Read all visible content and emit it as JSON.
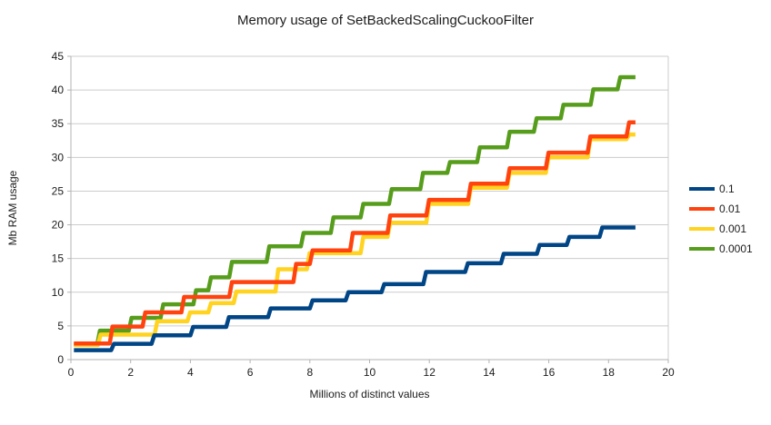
{
  "chart_data": {
    "type": "line",
    "line_style": "step-after",
    "title": "Memory usage of SetBackedScalingCuckooFilter",
    "xlabel": "Millions of distinct values",
    "ylabel": "Mb RAM usage",
    "xlim": [
      0,
      20
    ],
    "ylim": [
      0,
      45
    ],
    "xticks": [
      0,
      2,
      4,
      6,
      8,
      10,
      12,
      14,
      16,
      18,
      20
    ],
    "yticks": [
      0,
      5,
      10,
      15,
      20,
      25,
      30,
      35,
      40,
      45
    ],
    "grid": "horizontal",
    "legend_position": "right",
    "x_start": 0.1,
    "x_end": 18.9,
    "series": [
      {
        "name": "0.1",
        "color": "#004586",
        "points": [
          [
            0.1,
            1.4
          ],
          [
            1.35,
            2.35
          ],
          [
            2.7,
            3.6
          ],
          [
            4.0,
            4.85
          ],
          [
            5.2,
            6.3
          ],
          [
            6.6,
            7.6
          ],
          [
            8.0,
            8.8
          ],
          [
            9.2,
            10.0
          ],
          [
            10.4,
            11.2
          ],
          [
            11.8,
            13.0
          ],
          [
            13.2,
            14.3
          ],
          [
            14.4,
            15.7
          ],
          [
            15.6,
            17.0
          ],
          [
            16.6,
            18.2
          ],
          [
            17.7,
            19.6
          ]
        ]
      },
      {
        "name": "0.01",
        "color": "#ff420e",
        "points": [
          [
            0.1,
            2.4
          ],
          [
            1.3,
            4.9
          ],
          [
            2.4,
            7.0
          ],
          [
            3.7,
            9.3
          ],
          [
            5.3,
            11.5
          ],
          [
            7.45,
            14.2
          ],
          [
            8.0,
            16.2
          ],
          [
            9.35,
            18.8
          ],
          [
            10.6,
            21.4
          ],
          [
            11.9,
            23.7
          ],
          [
            13.3,
            26.1
          ],
          [
            14.6,
            28.4
          ],
          [
            15.9,
            30.7
          ],
          [
            17.3,
            33.1
          ],
          [
            18.6,
            35.2
          ]
        ]
      },
      {
        "name": "0.001",
        "color": "#ffd320",
        "points": [
          [
            0.1,
            2.15
          ],
          [
            0.9,
            3.7
          ],
          [
            2.8,
            5.7
          ],
          [
            3.9,
            7.0
          ],
          [
            4.6,
            8.4
          ],
          [
            5.45,
            10.1
          ],
          [
            6.85,
            13.4
          ],
          [
            7.9,
            15.8
          ],
          [
            9.7,
            18.2
          ],
          [
            10.6,
            20.3
          ],
          [
            11.9,
            23.1
          ],
          [
            13.3,
            25.5
          ],
          [
            14.6,
            27.7
          ],
          [
            15.9,
            30.0
          ],
          [
            17.3,
            32.7
          ],
          [
            18.6,
            33.4
          ]
        ]
      },
      {
        "name": "0.0001",
        "color": "#579d1c",
        "points": [
          [
            0.1,
            2.25
          ],
          [
            0.88,
            4.3
          ],
          [
            1.94,
            6.2
          ],
          [
            3.0,
            8.2
          ],
          [
            4.1,
            10.3
          ],
          [
            4.6,
            12.2
          ],
          [
            5.3,
            14.5
          ],
          [
            6.55,
            16.8
          ],
          [
            7.7,
            18.8
          ],
          [
            8.7,
            21.1
          ],
          [
            9.7,
            23.1
          ],
          [
            10.65,
            25.3
          ],
          [
            11.7,
            27.7
          ],
          [
            12.6,
            29.3
          ],
          [
            13.6,
            31.5
          ],
          [
            14.6,
            33.8
          ],
          [
            15.5,
            35.8
          ],
          [
            16.4,
            37.8
          ],
          [
            17.4,
            40.1
          ],
          [
            18.3,
            41.9
          ]
        ]
      }
    ],
    "draw_order": [
      3,
      2,
      1,
      0
    ],
    "colors": {
      "grid": "#cccccc",
      "axis": "#b3b3b3",
      "text": "#1c1c1c",
      "background": "#ffffff"
    }
  }
}
